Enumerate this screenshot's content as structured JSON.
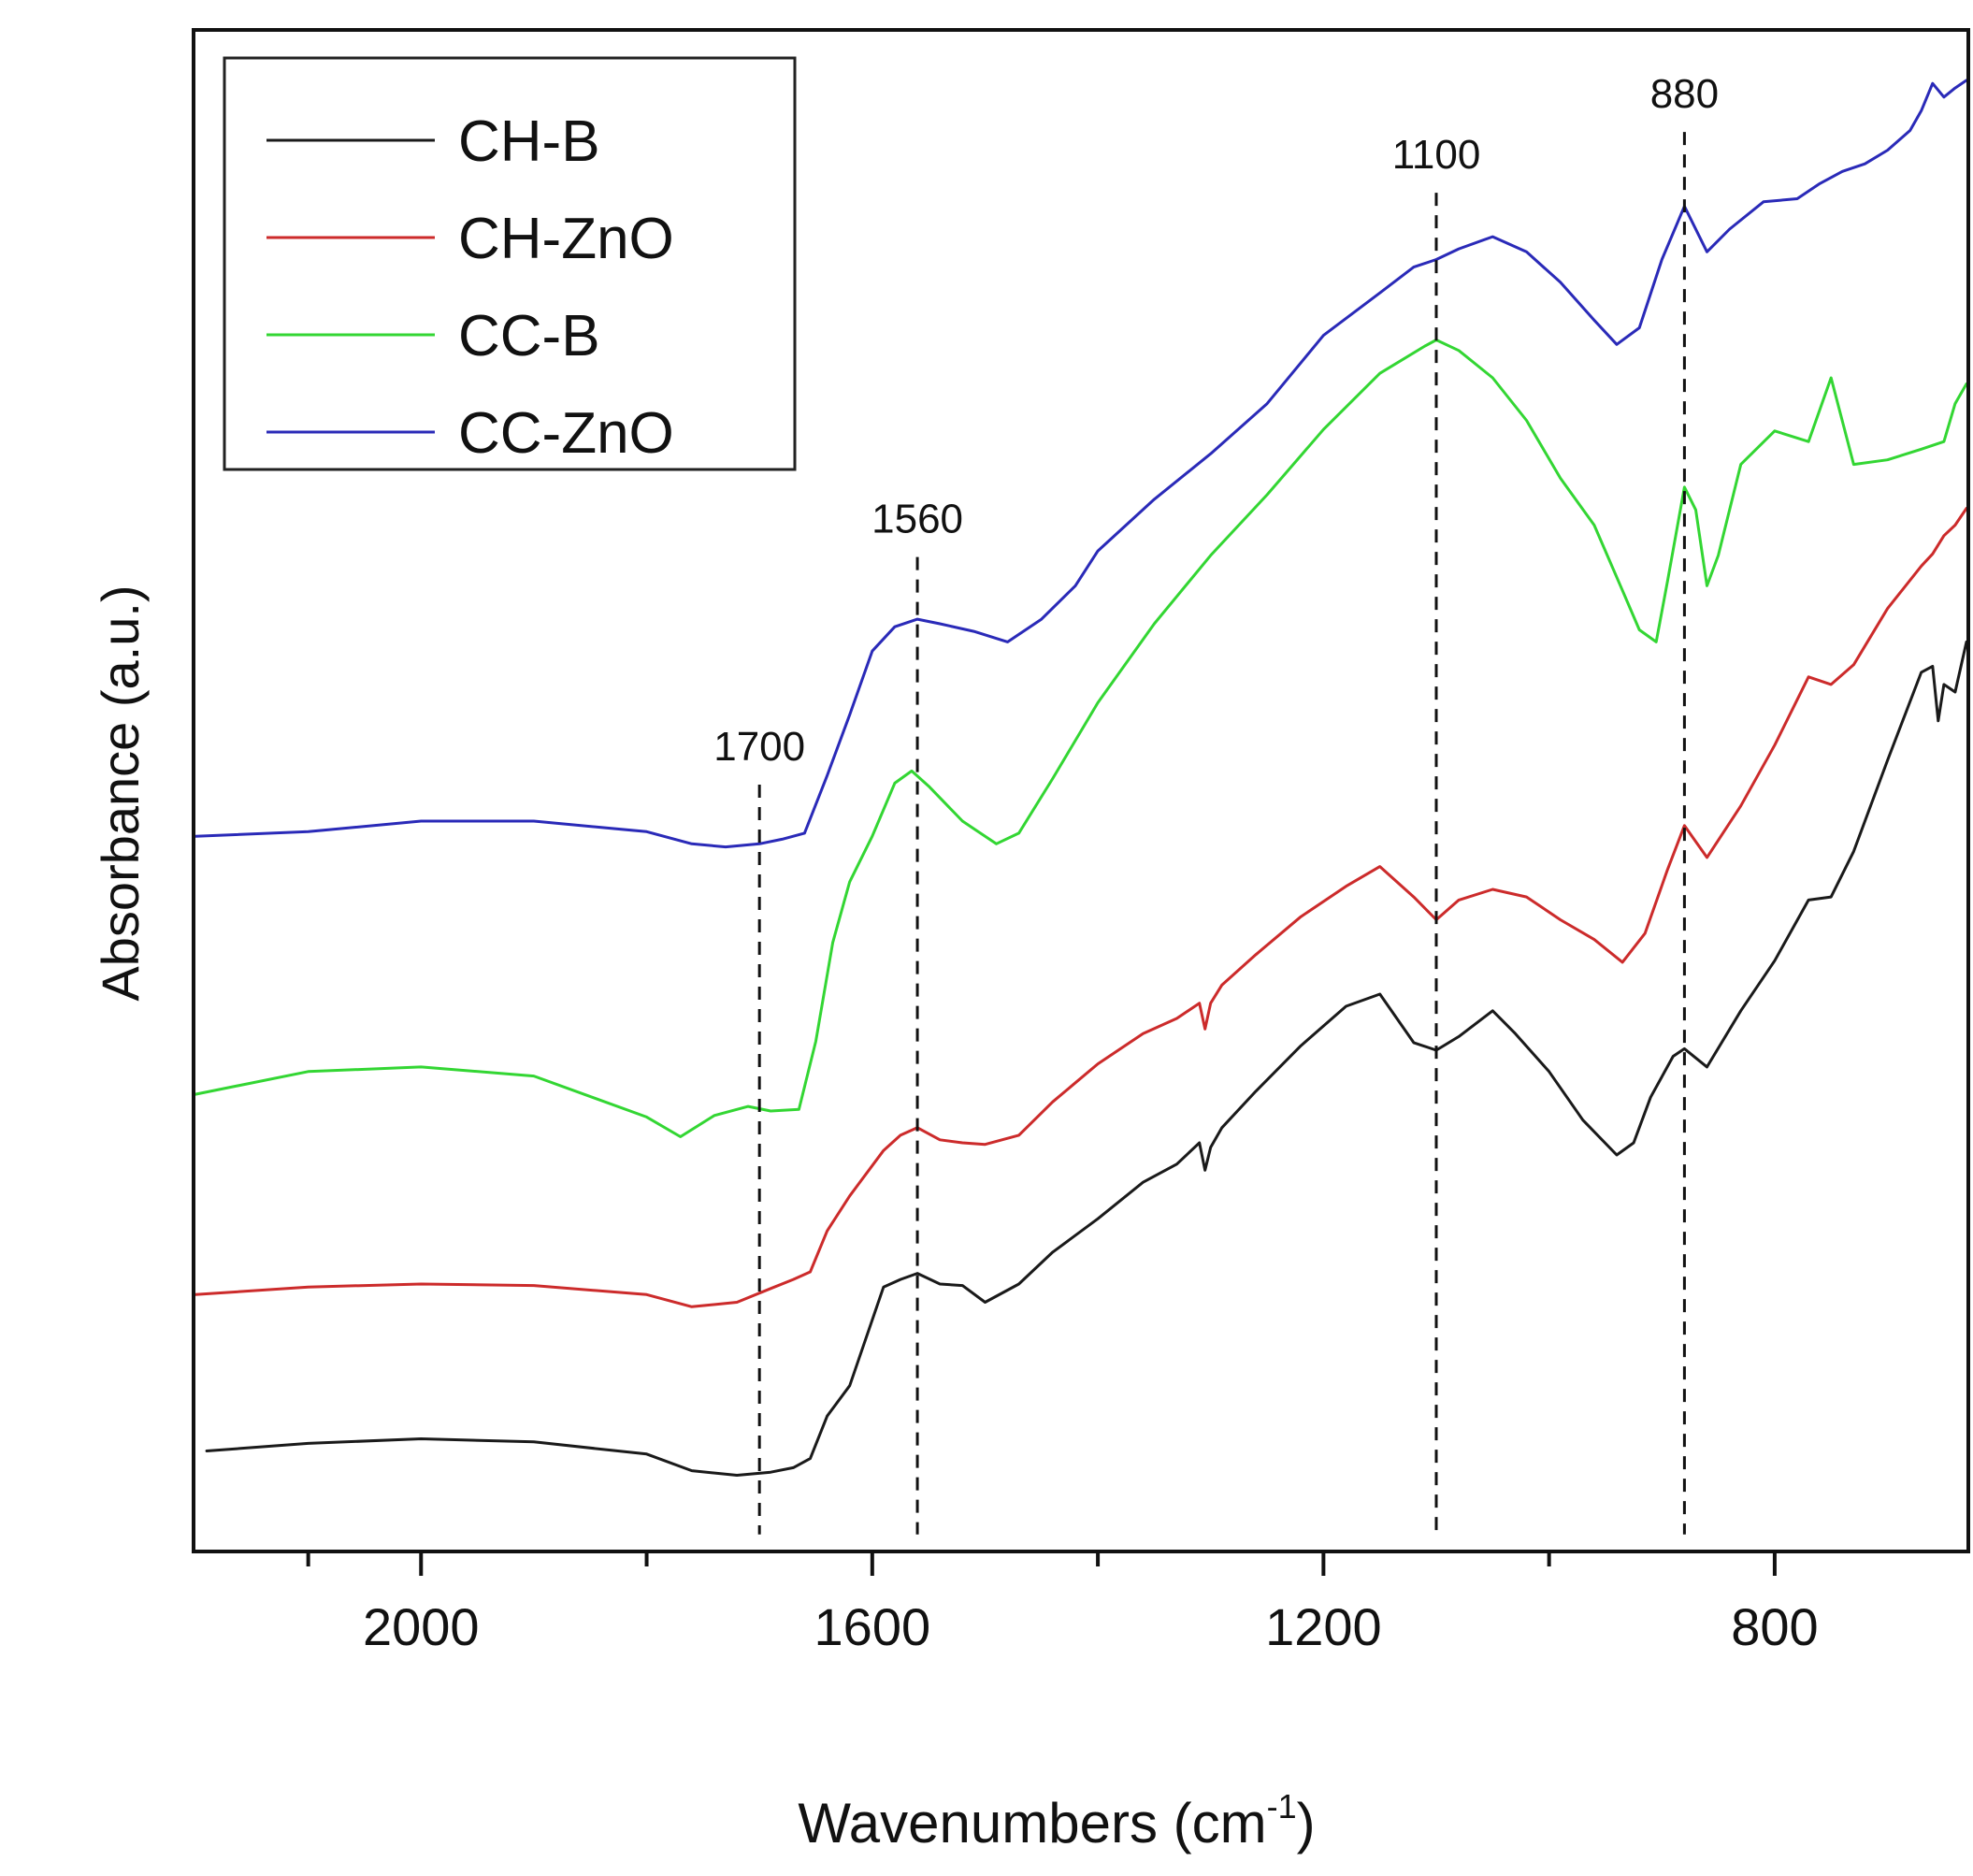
{
  "chart_data": {
    "type": "line",
    "title": "",
    "xlabel_main": "Wavenumbers (cm",
    "xlabel_sup": "-1",
    "xlabel_close": ")",
    "ylabel": "Absorbance (a.u.)",
    "xlim": [
      2200,
      630
    ],
    "ylim": [
      0,
      100
    ],
    "x_ticks": [
      2000,
      1600,
      1200,
      800
    ],
    "x_tick_labels": [
      "2000",
      "1600",
      "1200",
      "800"
    ],
    "minor_ticks": [
      2100,
      1800,
      1400,
      1000
    ],
    "yaxis_ticks_shown": false,
    "legend_position": "top-left",
    "reference_lines": [
      {
        "x": 1700,
        "label": "1700",
        "label_y": 52
      },
      {
        "x": 1560,
        "label": "1560",
        "label_y": 67
      },
      {
        "x": 1100,
        "label": "1100",
        "label_y": 91
      },
      {
        "x": 880,
        "label": "880",
        "label_y": 95
      }
    ],
    "series": [
      {
        "name": "CH-B",
        "color": "#1a1a1a",
        "x": [
          2190,
          2100,
          2000,
          1900,
          1800,
          1760,
          1720,
          1690,
          1670,
          1655,
          1640,
          1620,
          1590,
          1575,
          1560,
          1540,
          1520,
          1500,
          1470,
          1440,
          1400,
          1360,
          1330,
          1310,
          1305,
          1300,
          1290,
          1260,
          1220,
          1180,
          1150,
          1120,
          1100,
          1080,
          1050,
          1030,
          1000,
          970,
          940,
          925,
          910,
          890,
          880,
          860,
          830,
          800,
          770,
          750,
          730,
          700,
          670,
          660,
          655,
          650,
          640,
          630
        ],
        "y": [
          6.5,
          7,
          7.3,
          7.1,
          6.3,
          5.2,
          4.9,
          5.1,
          5.4,
          6.0,
          8.8,
          10.8,
          17.3,
          17.8,
          18.2,
          17.5,
          17.4,
          16.3,
          17.5,
          19.6,
          21.8,
          24.2,
          25.4,
          26.8,
          25.0,
          26.5,
          27.8,
          30.2,
          33.2,
          35.8,
          36.6,
          33.4,
          32.9,
          33.8,
          35.5,
          34.0,
          31.5,
          28.3,
          26.0,
          26.8,
          29.8,
          32.5,
          33.0,
          31.8,
          35.5,
          38.8,
          42.8,
          43.0,
          46.0,
          52.0,
          57.8,
          58.2,
          54.6,
          57.0,
          56.5,
          59.8
        ]
      },
      {
        "name": "CH-ZnO",
        "color": "#cc2b2b",
        "x": [
          2200,
          2100,
          2000,
          1900,
          1800,
          1760,
          1720,
          1690,
          1670,
          1655,
          1640,
          1620,
          1590,
          1575,
          1560,
          1540,
          1520,
          1500,
          1470,
          1440,
          1400,
          1360,
          1330,
          1310,
          1305,
          1300,
          1290,
          1260,
          1220,
          1180,
          1150,
          1120,
          1100,
          1080,
          1050,
          1020,
          990,
          960,
          935,
          915,
          895,
          880,
          860,
          830,
          800,
          770,
          750,
          730,
          700,
          670,
          660,
          650,
          640,
          630
        ],
        "y": [
          16.8,
          17.3,
          17.5,
          17.4,
          16.8,
          16.0,
          16.3,
          17.2,
          17.8,
          18.3,
          21.0,
          23.3,
          26.3,
          27.3,
          27.8,
          27.0,
          26.8,
          26.7,
          27.3,
          29.5,
          32.0,
          34.0,
          35.0,
          36.0,
          34.3,
          36.0,
          37.2,
          39.2,
          41.7,
          43.7,
          45.0,
          43.0,
          41.5,
          42.8,
          43.5,
          43.0,
          41.5,
          40.2,
          38.7,
          40.6,
          44.8,
          47.7,
          45.6,
          49.0,
          53.0,
          57.5,
          57.0,
          58.3,
          62.0,
          64.8,
          65.6,
          66.8,
          67.5,
          68.6
        ]
      },
      {
        "name": "CC-B",
        "color": "#33d633",
        "x": [
          2200,
          2100,
          2000,
          1900,
          1800,
          1770,
          1740,
          1710,
          1690,
          1665,
          1650,
          1635,
          1620,
          1600,
          1580,
          1565,
          1550,
          1520,
          1490,
          1470,
          1440,
          1400,
          1350,
          1300,
          1250,
          1200,
          1150,
          1110,
          1100,
          1080,
          1050,
          1020,
          990,
          960,
          935,
          920,
          905,
          895,
          880,
          870,
          860,
          850,
          830,
          800,
          770,
          750,
          730,
          700,
          670,
          650,
          640,
          630
        ],
        "y": [
          30.0,
          31.5,
          31.8,
          31.2,
          28.5,
          27.2,
          28.6,
          29.2,
          28.9,
          29.0,
          33.5,
          40.0,
          44.0,
          47.0,
          50.5,
          51.3,
          50.3,
          48.0,
          46.5,
          47.2,
          50.8,
          55.8,
          61.0,
          65.5,
          69.5,
          73.8,
          77.5,
          79.3,
          79.7,
          79.0,
          77.2,
          74.4,
          70.6,
          67.5,
          63.2,
          60.6,
          59.8,
          63.8,
          70.0,
          68.5,
          63.5,
          65.5,
          71.5,
          73.7,
          73.0,
          77.2,
          71.5,
          71.8,
          72.5,
          73.0,
          75.5,
          76.8
        ]
      },
      {
        "name": "CC-ZnO",
        "color": "#2a2ab8",
        "x": [
          2200,
          2100,
          2000,
          1900,
          1800,
          1760,
          1730,
          1700,
          1680,
          1660,
          1640,
          1620,
          1600,
          1580,
          1560,
          1540,
          1510,
          1480,
          1450,
          1420,
          1400,
          1350,
          1300,
          1250,
          1200,
          1150,
          1120,
          1100,
          1080,
          1050,
          1020,
          990,
          960,
          940,
          920,
          900,
          880,
          860,
          840,
          810,
          780,
          760,
          740,
          720,
          700,
          680,
          670,
          660,
          650,
          640,
          630
        ],
        "y": [
          47.0,
          47.3,
          48.0,
          48.0,
          47.3,
          46.5,
          46.3,
          46.5,
          46.8,
          47.2,
          51.0,
          55.0,
          59.2,
          60.8,
          61.3,
          61.0,
          60.5,
          59.8,
          61.3,
          63.5,
          65.8,
          69.2,
          72.2,
          75.5,
          80.0,
          82.8,
          84.5,
          85.0,
          85.7,
          86.5,
          85.5,
          83.5,
          81.0,
          79.4,
          80.5,
          85.0,
          88.5,
          85.5,
          87.0,
          88.8,
          89.0,
          90.0,
          90.8,
          91.3,
          92.2,
          93.5,
          94.8,
          96.6,
          95.7,
          96.3,
          96.8
        ]
      }
    ]
  }
}
